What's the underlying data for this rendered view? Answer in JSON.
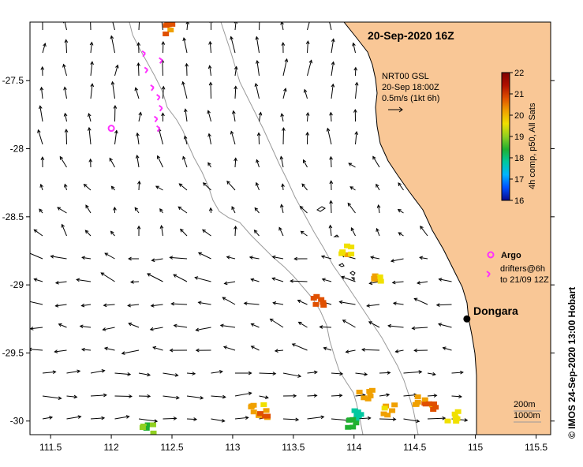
{
  "map": {
    "date_title": "20-Sep-2020 16Z",
    "lon_ticks": [
      "111.5",
      "112",
      "112.5",
      "113",
      "113.5",
      "114",
      "114.5",
      "115",
      "115.5"
    ],
    "lat_ticks": [
      "-27.5",
      "-28",
      "-28.5",
      "-29",
      "-29.5",
      "-30"
    ],
    "lon_values": [
      111.5,
      112,
      112.5,
      113,
      113.5,
      114,
      114.5,
      115,
      115.5
    ],
    "lat_values": [
      -27.5,
      -28,
      -28.5,
      -29,
      -29.5,
      -30
    ],
    "lon_range": [
      111.33,
      115.62
    ],
    "lat_range": [
      -27.07,
      -30.1
    ],
    "current_legend": {
      "line1": "NRT00 GSL",
      "line2": "20-Sep 18:00Z",
      "line3": "0.5m/s (1kt 6h)"
    },
    "colorbar": {
      "label": "4h comp, p50, All Sats",
      "ticks": [
        "22",
        "21",
        "20",
        "19",
        "18",
        "17",
        "16"
      ],
      "min": 16,
      "max": 22,
      "colors": [
        "#0a0a8c",
        "#0050ff",
        "#00b4ff",
        "#00c8a0",
        "#20b030",
        "#90d020",
        "#f0e000",
        "#f0a000",
        "#e05000",
        "#b01000",
        "#800000"
      ]
    },
    "legend": {
      "argo": "Argo",
      "drifters_line1": "drifters@6h",
      "drifters_line2": "to 21/09 12Z"
    },
    "place": {
      "name": "Dongara",
      "lon": 114.93,
      "lat": -29.25
    },
    "contours": {
      "line1": "200m",
      "line2": "1000m"
    },
    "credit": "© IMOS 24-Sep-2020 13:00 Hobart",
    "colors": {
      "land": "#f9c796",
      "ocean": "#ffffff",
      "coast": "#000000",
      "isobath": "#9a9a9a",
      "argo": "#ff30ff",
      "arrow": "#000000",
      "place_dot": "#000000"
    },
    "sst_patches": [
      {
        "lon": 113.2,
        "lat": -29.92,
        "value": 20.2
      },
      {
        "lon": 113.25,
        "lat": -29.95,
        "value": 20.5
      },
      {
        "lon": 114.05,
        "lat": -29.95,
        "value": 17.7
      },
      {
        "lon": 114.0,
        "lat": -30.02,
        "value": 18.2
      },
      {
        "lon": 114.1,
        "lat": -29.8,
        "value": 20.3
      },
      {
        "lon": 114.55,
        "lat": -29.85,
        "value": 20.4
      },
      {
        "lon": 114.62,
        "lat": -29.88,
        "value": 20.6
      },
      {
        "lon": 114.3,
        "lat": -29.92,
        "value": 20.0
      },
      {
        "lon": 114.2,
        "lat": -28.97,
        "value": 20.1
      },
      {
        "lon": 113.95,
        "lat": -28.74,
        "value": 19.6
      },
      {
        "lon": 112.3,
        "lat": -30.05,
        "value": 18.9
      },
      {
        "lon": 112.45,
        "lat": -27.12,
        "value": 20.8
      },
      {
        "lon": 113.7,
        "lat": -29.12,
        "value": 20.9
      },
      {
        "lon": 114.8,
        "lat": -29.97,
        "value": 19.5
      }
    ],
    "argo_floats": [
      {
        "lon": 112.0,
        "lat": -27.85
      }
    ],
    "drifter_tracks": [
      {
        "lon": 112.28,
        "lat": -27.3
      },
      {
        "lon": 112.3,
        "lat": -27.42
      },
      {
        "lon": 112.35,
        "lat": -27.55
      },
      {
        "lon": 112.4,
        "lat": -27.62
      },
      {
        "lon": 112.42,
        "lat": -27.7
      },
      {
        "lon": 112.38,
        "lat": -27.78
      },
      {
        "lon": 112.4,
        "lat": -27.85
      },
      {
        "lon": 112.42,
        "lat": -27.35
      }
    ]
  }
}
